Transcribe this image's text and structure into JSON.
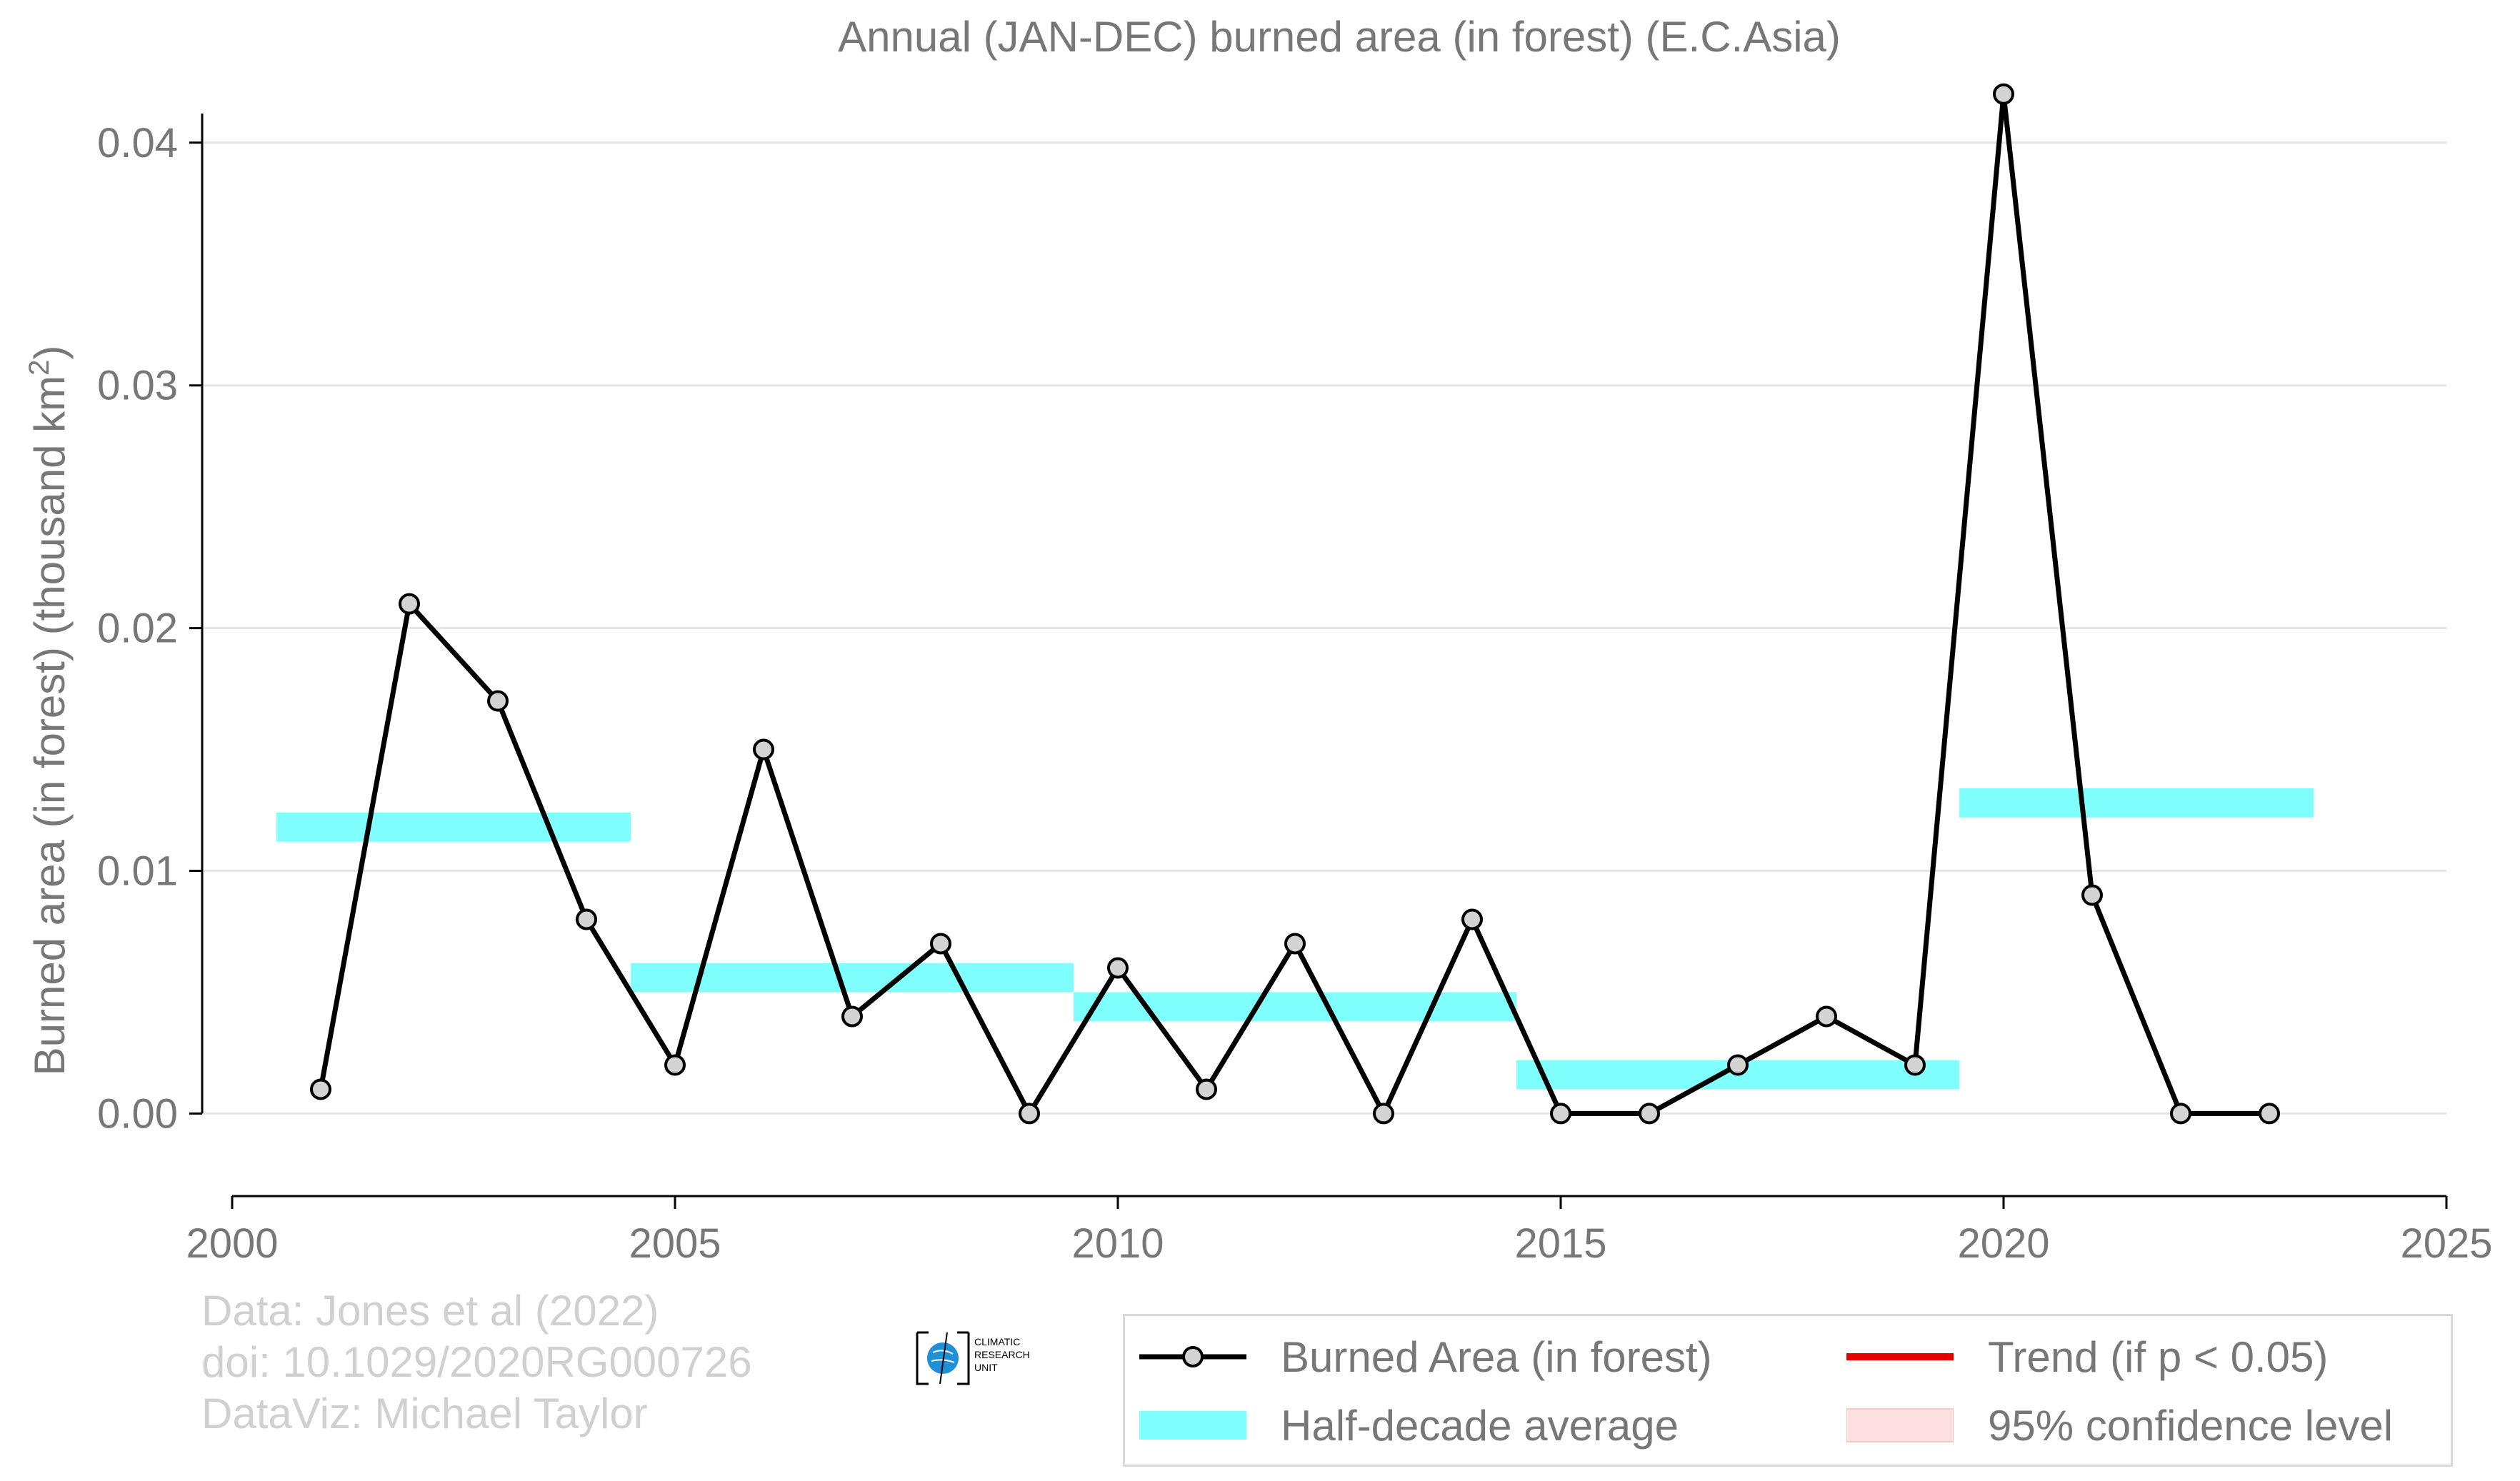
{
  "chart_data": {
    "type": "line",
    "title": "Annual (JAN-DEC) burned area (in forest) (E.C.Asia)",
    "ylabel": "Burned area (in forest) (thousand km²)",
    "xlabel": "",
    "xlim": [
      2000,
      2025
    ],
    "ylim": [
      -0.0034,
      0.0422
    ],
    "xticks": [
      2000,
      2005,
      2010,
      2015,
      2020,
      2025
    ],
    "yticks": [
      0.0,
      0.01,
      0.02,
      0.03,
      0.04
    ],
    "ytick_labels": [
      "0.00",
      "0.01",
      "0.02",
      "0.03",
      "0.04"
    ],
    "grid": "horizontal",
    "legend_position": "bottom-right",
    "series": [
      {
        "name": "Burned Area (in forest)",
        "color": "#000000",
        "marker_fill": "#d3d3d3",
        "x": [
          2001,
          2002,
          2003,
          2004,
          2005,
          2006,
          2007,
          2008,
          2009,
          2010,
          2011,
          2012,
          2013,
          2014,
          2015,
          2016,
          2017,
          2018,
          2019,
          2020,
          2021,
          2022,
          2023
        ],
        "y": [
          0.001,
          0.021,
          0.017,
          0.008,
          0.002,
          0.015,
          0.004,
          0.007,
          0.0,
          0.006,
          0.001,
          0.007,
          0.0,
          0.008,
          0.0,
          0.0,
          0.002,
          0.004,
          0.002,
          0.042,
          0.009,
          0.0,
          0.0
        ]
      }
    ],
    "half_decade_average": {
      "name": "Half-decade average",
      "color": "#80ffff",
      "segments": [
        {
          "x_start": 2000.5,
          "x_end": 2004.5,
          "value": 0.0118
        },
        {
          "x_start": 2004.5,
          "x_end": 2009.5,
          "value": 0.0056
        },
        {
          "x_start": 2009.5,
          "x_end": 2014.5,
          "value": 0.0044
        },
        {
          "x_start": 2014.5,
          "x_end": 2019.5,
          "value": 0.0016
        },
        {
          "x_start": 2019.5,
          "x_end": 2023.5,
          "value": 0.0128
        }
      ]
    },
    "legend": [
      {
        "label": "Burned Area (in forest)",
        "symbol": "line-marker",
        "color": "#000000"
      },
      {
        "label": "Trend (if p < 0.05)",
        "symbol": "line",
        "color": "#e60000"
      },
      {
        "label": "Half-decade average",
        "symbol": "band",
        "color": "#80ffff"
      },
      {
        "label": "95% confidence level",
        "symbol": "band",
        "color": "#ffe0e0"
      }
    ]
  },
  "credits": {
    "line1": "Data: Jones et al (2022)",
    "line2": "doi: 10.1029/2020RG000726",
    "line3": "DataViz: Michael Taylor"
  },
  "logo": {
    "line1": "CLIMATIC",
    "line2": "RESEARCH",
    "line3": "UNIT"
  },
  "colors": {
    "text": "#777777",
    "grid": "#e5e5e5",
    "axis": "#000000",
    "credits": "#d0d0d0"
  }
}
